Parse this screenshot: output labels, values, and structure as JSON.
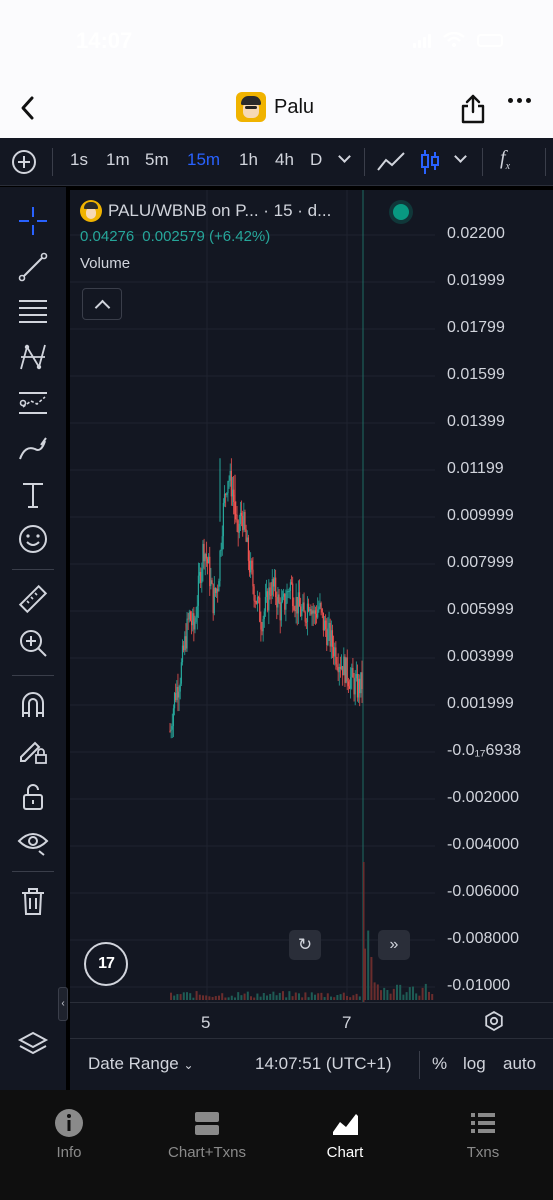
{
  "status_bar": {
    "time": "14:07"
  },
  "nav": {
    "title": "Palu"
  },
  "toolbar": {
    "intervals": [
      "1s",
      "1m",
      "5m",
      "15m",
      "1h",
      "4h",
      "D"
    ],
    "active_interval": "15m",
    "fx_label": "f",
    "fx_sub": "x"
  },
  "legend": {
    "symbol": "PALU/WBNB on P... · 15 · d...",
    "price": "0.04276",
    "change": "0.002579 (+6.42%)",
    "volume_label": "Volume"
  },
  "chart_data": {
    "type": "candlestick",
    "price_axis_ticks": [
      "0.02200",
      "0.01999",
      "0.01799",
      "0.01599",
      "0.01399",
      "0.01199",
      "0.009999",
      "0.007999",
      "0.005999",
      "0.003999",
      "0.001999",
      "-0.0₁₇6938",
      "-0.002000",
      "-0.004000",
      "-0.006000",
      "-0.008000",
      "-0.01000"
    ],
    "time_axis_ticks": [
      "5",
      "7"
    ],
    "series_close_outline": [
      0.0009,
      0.0024,
      0.0031,
      0.0045,
      0.0058,
      0.0052,
      0.0071,
      0.0088,
      0.0079,
      0.0064,
      0.0072,
      0.0101,
      0.0118,
      0.0112,
      0.0092,
      0.0102,
      0.0087,
      0.0074,
      0.0065,
      0.0056,
      0.0062,
      0.0071,
      0.0068,
      0.006,
      0.0064,
      0.0072,
      0.0065,
      0.0061,
      0.0057,
      0.0066,
      0.0058,
      0.0062,
      0.0054,
      0.005,
      0.0045,
      0.004,
      0.0037,
      0.0033,
      0.003,
      0.0027,
      0.0029
    ],
    "up_color": "#26a69a",
    "down_color": "#ef5350"
  },
  "bottom_toolbar": {
    "date_range": "Date Range",
    "clock": "14:07:51 (UTC+1)",
    "percent": "%",
    "log": "log",
    "auto": "auto"
  },
  "tabbar": {
    "tabs": [
      {
        "label": "Info",
        "icon": "info-icon"
      },
      {
        "label": "Chart+Txns",
        "icon": "chart-txns-icon"
      },
      {
        "label": "Chart",
        "icon": "chart-icon"
      },
      {
        "label": "Txns",
        "icon": "list-icon"
      }
    ],
    "active": "Chart"
  },
  "colors": {
    "background": "#131722",
    "accent": "#2962ff",
    "up": "#26a69a",
    "down": "#ef5350"
  }
}
